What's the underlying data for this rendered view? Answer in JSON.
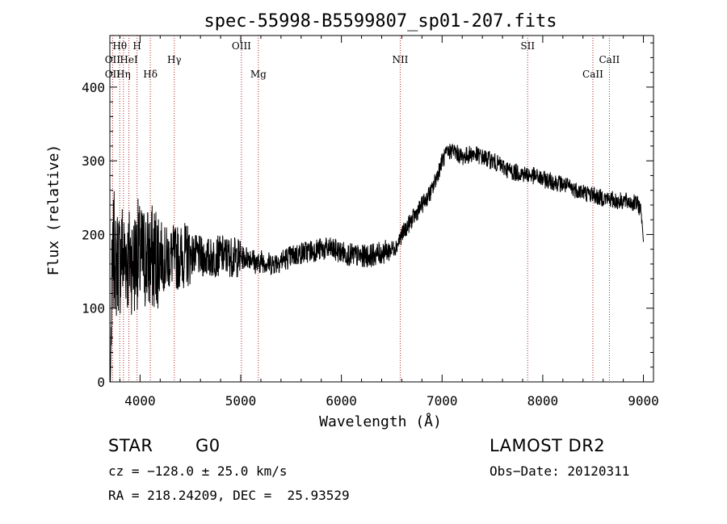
{
  "chart_data": {
    "type": "line",
    "title": "spec-55998-B5599807_sp01-207.fits",
    "xlabel": "Wavelength (Å)",
    "ylabel": "Flux (relative)",
    "xlim": [
      3700,
      9100
    ],
    "ylim": [
      0,
      470
    ],
    "xticks": [
      4000,
      5000,
      6000,
      7000,
      8000,
      9000
    ],
    "yticks": [
      0,
      100,
      200,
      300,
      400
    ],
    "grid": false,
    "series": [
      {
        "x": [
          3705,
          3720,
          3740,
          3760,
          3780,
          3800,
          3820,
          3840,
          3860,
          3880,
          3900,
          3920,
          3940,
          3960,
          3980,
          4000,
          4050,
          4100,
          4150,
          4200,
          4250,
          4300,
          4350,
          4400,
          4450,
          4500,
          4600,
          4700,
          4800,
          4900,
          5000,
          5100,
          5170,
          5200,
          5300,
          5400,
          5500,
          5600,
          5700,
          5800,
          5900,
          6000,
          6100,
          6200,
          6300,
          6400,
          6500,
          6550,
          6600,
          6700,
          6800,
          6900,
          6950,
          7000,
          7050,
          7100,
          7200,
          7300,
          7400,
          7500,
          7600,
          7650,
          7700,
          7800,
          7850,
          7900,
          8000,
          8100,
          8200,
          8300,
          8400,
          8450,
          8500,
          8550,
          8600,
          8650,
          8700,
          8750,
          8800,
          8850,
          8900,
          8950,
          8980,
          9000
        ],
        "y": [
          0,
          120,
          190,
          150,
          170,
          160,
          180,
          165,
          175,
          160,
          170,
          165,
          160,
          170,
          175,
          165,
          170,
          165,
          170,
          175,
          165,
          170,
          168,
          170,
          172,
          174,
          170,
          168,
          172,
          170,
          168,
          170,
          158,
          165,
          160,
          165,
          170,
          175,
          178,
          180,
          180,
          176,
          172,
          170,
          172,
          175,
          180,
          185,
          200,
          220,
          240,
          260,
          280,
          300,
          310,
          315,
          305,
          310,
          305,
          300,
          292,
          288,
          285,
          283,
          281,
          280,
          275,
          272,
          268,
          262,
          258,
          255,
          255,
          250,
          250,
          248,
          247,
          245,
          246,
          244,
          243,
          240,
          230,
          190
        ]
      }
    ],
    "line_markers": [
      {
        "label": "Hθ",
        "x": 3798,
        "row": 1
      },
      {
        "label": "H",
        "x": 3970,
        "row": 1
      },
      {
        "label": "OIII",
        "x": 5007,
        "row": 1
      },
      {
        "label": "SII",
        "x": 7850,
        "row": 1
      },
      {
        "label": "OII",
        "x": 3727,
        "row": 2
      },
      {
        "label": "HeI",
        "x": 3889,
        "row": 2
      },
      {
        "label": "Hγ",
        "x": 4340,
        "row": 2
      },
      {
        "label": "NII",
        "x": 6584,
        "row": 2
      },
      {
        "label": "CaII",
        "x": 8662,
        "row": 2
      },
      {
        "label": "OII",
        "x": 3727,
        "row": 3
      },
      {
        "label": "Hη",
        "x": 3835,
        "row": 3
      },
      {
        "label": "Hδ",
        "x": 4102,
        "row": 3
      },
      {
        "label": "Mg",
        "x": 5175,
        "row": 3
      },
      {
        "label": "CaII",
        "x": 8498,
        "row": 3
      }
    ]
  },
  "info": {
    "class": "STAR",
    "subclass": "G0",
    "survey": "LAMOST DR2",
    "cz": "cz = −128.0 ± 25.0 km/s",
    "obs_date": "Obs−Date: 20120311",
    "coords": "RA = 218.24209, DEC =  25.93529"
  }
}
